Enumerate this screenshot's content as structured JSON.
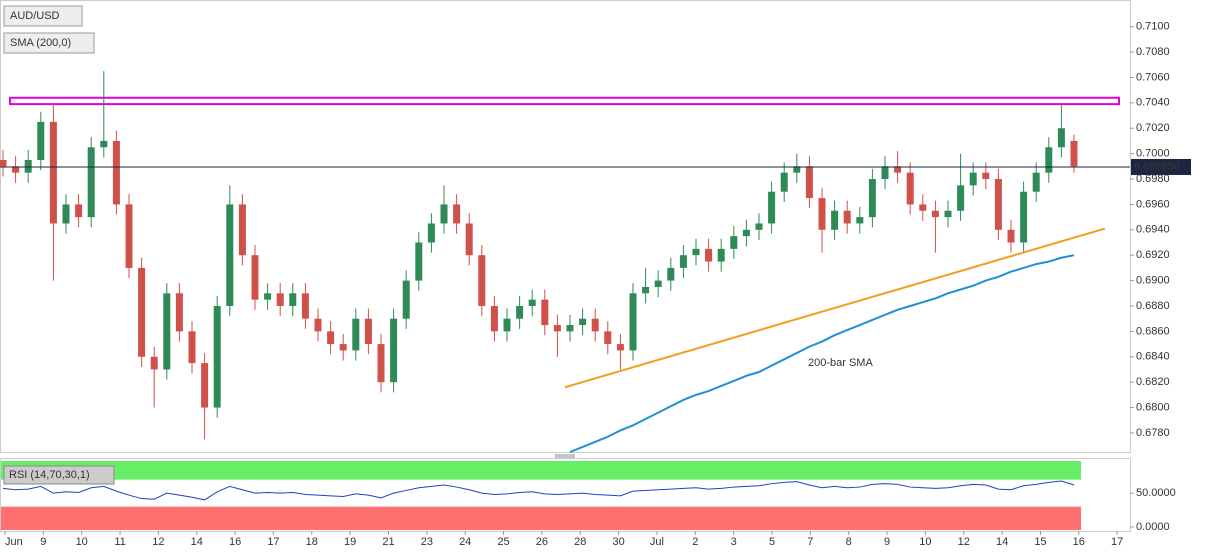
{
  "chart_data": {
    "type": "candlestick",
    "title": "AUD/USD",
    "indicator_label": "SMA (200,0)",
    "up_color": "#2e8b57",
    "down_color": "#d0504a",
    "open": [
      0.6995,
      0.699,
      0.6985,
      0.6995,
      0.7025,
      0.6945,
      0.696,
      0.695,
      0.7005,
      0.701,
      0.696,
      0.691,
      0.684,
      0.683,
      0.689,
      0.686,
      0.6835,
      0.68,
      0.688,
      0.696,
      0.692,
      0.6885,
      0.689,
      0.688,
      0.689,
      0.687,
      0.686,
      0.685,
      0.6845,
      0.687,
      0.685,
      0.682,
      0.687,
      0.69,
      0.693,
      0.6945,
      0.696,
      0.6945,
      0.692,
      0.688,
      0.686,
      0.687,
      0.688,
      0.6885,
      0.6865,
      0.686,
      0.6865,
      0.687,
      0.686,
      0.685,
      0.6845,
      0.689,
      0.6895,
      0.69,
      0.691,
      0.692,
      0.6925,
      0.6915,
      0.6925,
      0.6935,
      0.694,
      0.6945,
      0.697,
      0.6985,
      0.699,
      0.6965,
      0.694,
      0.6955,
      0.6945,
      0.695,
      0.698,
      0.699,
      0.6985,
      0.696,
      0.6955,
      0.695,
      0.6955,
      0.6975,
      0.6985,
      0.698,
      0.694,
      0.693,
      0.697,
      0.6985,
      0.7005,
      0.701
    ],
    "high": [
      0.7003,
      0.6998,
      0.7003,
      0.7033,
      0.704,
      0.6968,
      0.6968,
      0.7013,
      0.7065,
      0.7018,
      0.6968,
      0.6918,
      0.6848,
      0.6898,
      0.6898,
      0.6868,
      0.6843,
      0.6888,
      0.6975,
      0.6968,
      0.6928,
      0.6898,
      0.6898,
      0.6898,
      0.6898,
      0.6878,
      0.6868,
      0.6858,
      0.6878,
      0.6878,
      0.6858,
      0.6878,
      0.6908,
      0.6938,
      0.6953,
      0.6975,
      0.6968,
      0.6953,
      0.6928,
      0.6888,
      0.6878,
      0.6888,
      0.6893,
      0.6893,
      0.6873,
      0.6873,
      0.6878,
      0.6878,
      0.6868,
      0.6858,
      0.6898,
      0.691,
      0.6908,
      0.6918,
      0.6928,
      0.6933,
      0.6933,
      0.6933,
      0.6943,
      0.6948,
      0.6953,
      0.6978,
      0.6993,
      0.7,
      0.6998,
      0.6973,
      0.6963,
      0.6963,
      0.6958,
      0.6988,
      0.6998,
      0.7002,
      0.6993,
      0.6968,
      0.6963,
      0.6963,
      0.7,
      0.6993,
      0.6993,
      0.6988,
      0.6948,
      0.6978,
      0.6993,
      0.7013,
      0.7038,
      0.7015
    ],
    "low": [
      0.6982,
      0.6977,
      0.6977,
      0.6987,
      0.69,
      0.6937,
      0.6942,
      0.6942,
      0.6997,
      0.6952,
      0.6902,
      0.6832,
      0.68,
      0.6822,
      0.6852,
      0.6827,
      0.6775,
      0.6792,
      0.6872,
      0.6912,
      0.6877,
      0.6877,
      0.6872,
      0.6872,
      0.6862,
      0.6852,
      0.6842,
      0.6837,
      0.6837,
      0.6842,
      0.6812,
      0.6812,
      0.6862,
      0.6892,
      0.6922,
      0.6937,
      0.6937,
      0.6912,
      0.6872,
      0.6852,
      0.6852,
      0.6862,
      0.6872,
      0.6857,
      0.684,
      0.6852,
      0.6857,
      0.6852,
      0.6842,
      0.683,
      0.6837,
      0.6882,
      0.6887,
      0.6892,
      0.6902,
      0.6912,
      0.6907,
      0.6907,
      0.6917,
      0.6927,
      0.6932,
      0.6937,
      0.6962,
      0.6977,
      0.6957,
      0.6922,
      0.6932,
      0.6937,
      0.6937,
      0.6942,
      0.6972,
      0.6977,
      0.6952,
      0.6947,
      0.6922,
      0.6942,
      0.6947,
      0.6967,
      0.6972,
      0.6932,
      0.6922,
      0.6922,
      0.6962,
      0.6977,
      0.6997,
      0.6985
    ],
    "close": [
      0.699,
      0.6985,
      0.6995,
      0.7025,
      0.6945,
      0.696,
      0.695,
      0.7005,
      0.701,
      0.696,
      0.691,
      0.684,
      0.683,
      0.689,
      0.686,
      0.6835,
      0.68,
      0.688,
      0.696,
      0.692,
      0.6885,
      0.689,
      0.688,
      0.689,
      0.687,
      0.686,
      0.685,
      0.6845,
      0.687,
      0.685,
      0.682,
      0.687,
      0.69,
      0.693,
      0.6945,
      0.696,
      0.6945,
      0.692,
      0.688,
      0.686,
      0.687,
      0.688,
      0.6885,
      0.6865,
      0.686,
      0.6865,
      0.687,
      0.686,
      0.685,
      0.6845,
      0.689,
      0.6895,
      0.69,
      0.691,
      0.692,
      0.6925,
      0.6915,
      0.6925,
      0.6935,
      0.694,
      0.6945,
      0.697,
      0.6985,
      0.699,
      0.6965,
      0.694,
      0.6955,
      0.6945,
      0.695,
      0.698,
      0.699,
      0.6985,
      0.696,
      0.6955,
      0.695,
      0.6955,
      0.6975,
      0.6985,
      0.698,
      0.694,
      0.693,
      0.697,
      0.6985,
      0.7005,
      0.702,
      0.699
    ],
    "ylim": [
      0.6765,
      0.7121
    ],
    "yticks": [
      {
        "value": 0.678,
        "label": "0.6780"
      },
      {
        "value": 0.68,
        "label": "0.6800"
      },
      {
        "value": 0.682,
        "label": "0.6820"
      },
      {
        "value": 0.684,
        "label": "0.6840"
      },
      {
        "value": 0.686,
        "label": "0.6860"
      },
      {
        "value": 0.688,
        "label": "0.6880"
      },
      {
        "value": 0.69,
        "label": "0.6900"
      },
      {
        "value": 0.692,
        "label": "0.6920"
      },
      {
        "value": 0.694,
        "label": "0.6940"
      },
      {
        "value": 0.696,
        "label": "0.6960"
      },
      {
        "value": 0.698,
        "label": "0.6980"
      },
      {
        "value": 0.7,
        "label": "0.7000"
      },
      {
        "value": 0.702,
        "label": "0.7020"
      },
      {
        "value": 0.704,
        "label": "0.7040"
      },
      {
        "value": 0.706,
        "label": "0.7060"
      },
      {
        "value": 0.708,
        "label": "0.7080"
      },
      {
        "value": 0.71,
        "label": "0.7100"
      }
    ],
    "current_price": {
      "value": 0.69895,
      "label": "0.698950"
    },
    "resistance_zone": {
      "values": [
        0.7039,
        0.7044
      ],
      "color": "#e000e0"
    },
    "trendline": {
      "values": [
        0.6816,
        0.6941
      ],
      "color": "#f0a020"
    },
    "sma": {
      "name": "200-bar SMA",
      "color": "#1e90d6",
      "values": [
        null,
        null,
        null,
        null,
        null,
        null,
        null,
        null,
        null,
        null,
        null,
        null,
        null,
        null,
        null,
        null,
        null,
        null,
        null,
        null,
        null,
        null,
        null,
        null,
        null,
        null,
        null,
        null,
        null,
        null,
        null,
        null,
        null,
        null,
        null,
        null,
        null,
        null,
        null,
        null,
        null,
        null,
        null,
        null,
        null,
        0.6765,
        0.6769,
        0.6773,
        0.6777,
        0.6782,
        0.6786,
        0.6791,
        0.6796,
        0.6801,
        0.6806,
        0.681,
        0.6813,
        0.6817,
        0.6821,
        0.6825,
        0.6828,
        0.6833,
        0.6838,
        0.6843,
        0.6848,
        0.6852,
        0.6857,
        0.6861,
        0.6865,
        0.6869,
        0.6873,
        0.6877,
        0.688,
        0.6883,
        0.6886,
        0.689,
        0.6893,
        0.6896,
        0.69,
        0.6903,
        0.6907,
        0.691,
        0.6913,
        0.6915,
        0.6918,
        0.692
      ]
    },
    "x_labels": [
      "Jun",
      "9",
      "10",
      "11",
      "12",
      "14",
      "16",
      "17",
      "18",
      "19",
      "21",
      "23",
      "24",
      "25",
      "26",
      "28",
      "30",
      "Jul",
      "2",
      "3",
      "5",
      "7",
      "8",
      "9",
      "10",
      "12",
      "14",
      "15",
      "16",
      "17"
    ],
    "rsi": {
      "title": "RSI (14,70,30,1)",
      "color": "#2040c0",
      "values": [
        57,
        55,
        56,
        60,
        50,
        52,
        51,
        58,
        60,
        53,
        47,
        42,
        41,
        50,
        47,
        44,
        40,
        52,
        60,
        55,
        50,
        51,
        50,
        51,
        48,
        47,
        46,
        45,
        49,
        47,
        43,
        50,
        54,
        58,
        60,
        62,
        59,
        55,
        50,
        48,
        49,
        51,
        52,
        49,
        48,
        49,
        50,
        48,
        47,
        46,
        53,
        54,
        55,
        56,
        57,
        58,
        56,
        57,
        59,
        60,
        61,
        64,
        66,
        67,
        62,
        58,
        60,
        58,
        59,
        63,
        64,
        63,
        59,
        58,
        57,
        58,
        61,
        63,
        62,
        56,
        55,
        61,
        63,
        66,
        68,
        62
      ],
      "ylim": [
        -6,
        102
      ],
      "yticks": [
        {
          "value": 50,
          "label": "50.0000"
        },
        {
          "value": 0,
          "label": "0.0000"
        }
      ],
      "overbought": 70,
      "oversold": 30,
      "overbought_color": "#66ee66",
      "oversold_color": "#ff7070"
    }
  }
}
